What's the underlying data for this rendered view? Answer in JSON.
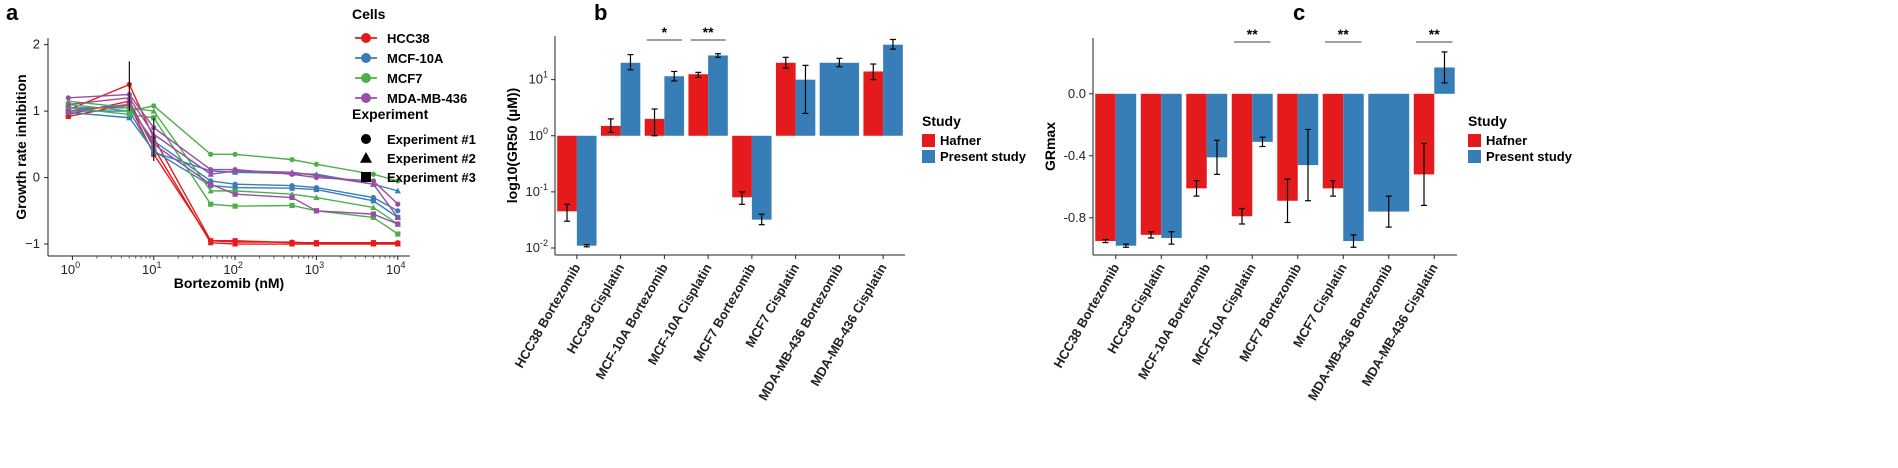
{
  "colors": {
    "HCC38": "#e41a1c",
    "MCF-10A": "#377eb8",
    "MCF7": "#4daf4a",
    "MDA-MB-436": "#984ea3",
    "Hafner": "#e41a1c",
    "Present study": "#377eb8"
  },
  "chart_data": [
    {
      "panel": "a",
      "type": "line",
      "xlabel": "Bortezomib (nM)",
      "ylabel": "Growth rate inhibition",
      "xscale": "log10",
      "xlim_log10": [
        -0.3,
        4.15
      ],
      "ylim": [
        -1.18,
        2.1
      ],
      "x_ticks": [
        {
          "value": 0,
          "base": "10",
          "exp": "0"
        },
        {
          "value": 1,
          "base": "10",
          "exp": "1"
        },
        {
          "value": 2,
          "base": "10",
          "exp": "2"
        },
        {
          "value": 3,
          "base": "10",
          "exp": "3"
        },
        {
          "value": 4,
          "base": "10",
          "exp": "4"
        }
      ],
      "y_ticks": [
        {
          "value": -1,
          "label": "−1"
        },
        {
          "value": 0,
          "label": "0"
        },
        {
          "value": 1,
          "label": "1"
        },
        {
          "value": 2,
          "label": "2"
        }
      ],
      "legend_cells_title": "Cells",
      "legend_cells": [
        "HCC38",
        "MCF-10A",
        "MCF7",
        "MDA-MB-436"
      ],
      "legend_experiment_title": "Experiment",
      "legend_experiment": [
        {
          "label": "Experiment #1",
          "shape": "circle"
        },
        {
          "label": "Experiment #2",
          "shape": "triangle"
        },
        {
          "label": "Experiment #3",
          "shape": "square"
        }
      ],
      "x_log10": [
        -0.05,
        0.7,
        1.0,
        1.7,
        2.0,
        2.7,
        3.0,
        3.7,
        4.0
      ],
      "series": [
        {
          "cell": "HCC38",
          "shape": "circle",
          "y": [
            1.02,
            1.4,
            0.6,
            -0.95,
            -0.97,
            -0.97,
            -0.99,
            -0.98,
            -0.98
          ]
        },
        {
          "cell": "HCC38",
          "shape": "triangle",
          "y": [
            0.95,
            1.15,
            0.45,
            -0.98,
            -1.0,
            -1.0,
            -1.0,
            -1.0,
            -1.0
          ]
        },
        {
          "cell": "HCC38",
          "shape": "square",
          "y": [
            0.92,
            1.1,
            0.35,
            -0.95,
            -0.95,
            -0.98,
            -0.98,
            -0.98,
            -0.99
          ]
        },
        {
          "cell": "MCF-10A",
          "shape": "circle",
          "y": [
            1.05,
            1.05,
            0.55,
            -0.05,
            -0.1,
            -0.12,
            -0.15,
            -0.3,
            -0.5
          ]
        },
        {
          "cell": "MCF-10A",
          "shape": "triangle",
          "y": [
            1.0,
            1.0,
            0.38,
            0.1,
            0.08,
            0.06,
            0.05,
            -0.1,
            -0.2
          ]
        },
        {
          "cell": "MCF-10A",
          "shape": "square",
          "y": [
            0.98,
            0.9,
            0.4,
            -0.12,
            -0.15,
            -0.16,
            -0.18,
            -0.35,
            -0.6
          ]
        },
        {
          "cell": "MCF7",
          "shape": "circle",
          "y": [
            1.1,
            1.0,
            1.08,
            0.35,
            0.35,
            0.27,
            0.2,
            0.05,
            -0.05
          ]
        },
        {
          "cell": "MCF7",
          "shape": "triangle",
          "y": [
            1.15,
            1.05,
            1.0,
            -0.2,
            -0.2,
            -0.25,
            -0.3,
            -0.45,
            -0.7
          ]
        },
        {
          "cell": "MCF7",
          "shape": "square",
          "y": [
            1.05,
            0.95,
            0.9,
            -0.4,
            -0.43,
            -0.42,
            -0.5,
            -0.6,
            -0.85
          ]
        },
        {
          "cell": "MDA-MB-436",
          "shape": "circle",
          "y": [
            1.2,
            1.25,
            0.75,
            0.12,
            0.12,
            0.05,
            0.0,
            -0.05,
            -0.4
          ]
        },
        {
          "cell": "MDA-MB-436",
          "shape": "triangle",
          "y": [
            1.1,
            1.2,
            0.65,
            0.05,
            0.1,
            0.08,
            0.03,
            -0.1,
            -0.6
          ]
        },
        {
          "cell": "MDA-MB-436",
          "shape": "square",
          "y": [
            1.0,
            1.1,
            0.5,
            -0.1,
            -0.25,
            -0.3,
            -0.5,
            -0.55,
            -0.7
          ]
        }
      ]
    },
    {
      "panel": "b",
      "type": "bar",
      "ylabel": "log10(GR50 (µM))",
      "yscale": "log10",
      "baseline": 1,
      "ylim": [
        0.0075,
        60
      ],
      "y_ticks": [
        {
          "value": 0.01,
          "base": "10",
          "exp": "-2"
        },
        {
          "value": 0.1,
          "base": "10",
          "exp": "-1"
        },
        {
          "value": 1,
          "base": "10",
          "exp": "0"
        },
        {
          "value": 10,
          "base": "10",
          "exp": "1"
        }
      ],
      "categories": [
        "HCC38 Bortezomib",
        "HCC38 Cisplatin",
        "MCF-10A Bortezomib",
        "MCF-10A Cisplatin",
        "MCF7 Bortezomib",
        "MCF7 Cisplatin",
        "MDA-MB-436 Bortezomib",
        "MDA-MB-436 Cisplatin"
      ],
      "legend_title": "Study",
      "legend": [
        "Hafner",
        "Present study"
      ],
      "series": [
        {
          "name": "Hafner",
          "values": [
            0.045,
            1.5,
            2.0,
            12.5,
            0.08,
            20.0,
            null,
            14.0
          ],
          "err_lo": [
            0.03,
            1.15,
            1.0,
            11.0,
            0.06,
            16.0,
            null,
            10.0
          ],
          "err_hi": [
            0.06,
            2.0,
            3.0,
            13.5,
            0.1,
            25.0,
            null,
            19.0
          ]
        },
        {
          "name": "Present study",
          "values": [
            0.011,
            20.0,
            11.5,
            27.0,
            0.032,
            10.0,
            20.0,
            42.0
          ],
          "err_lo": [
            0.0105,
            15.0,
            9.5,
            25.0,
            0.026,
            2.5,
            17.0,
            35.0
          ],
          "err_hi": [
            0.0115,
            28.0,
            14.0,
            29.0,
            0.04,
            18.0,
            24.0,
            52.0
          ]
        }
      ],
      "significance": [
        {
          "category_index": 2,
          "label": "*"
        },
        {
          "category_index": 3,
          "label": "**"
        }
      ]
    },
    {
      "panel": "c",
      "type": "bar",
      "ylabel": "GRmax",
      "baseline": 0,
      "ylim": [
        -1.04,
        0.36
      ],
      "y_ticks": [
        {
          "value": 0,
          "label": "0.0"
        },
        {
          "value": -0.4,
          "label": "-0.4"
        },
        {
          "value": -0.8,
          "label": "-0.8"
        }
      ],
      "categories": [
        "HCC38 Bortezomib",
        "HCC38 Cisplatin",
        "MCF-10A Bortezomib",
        "MCF-10A Cisplatin",
        "MCF7 Bortezomib",
        "MCF7 Cisplatin",
        "MDA-MB-436 Bortezomib",
        "MDA-MB-436 Cisplatin"
      ],
      "legend_title": "Study",
      "legend": [
        "Hafner",
        "Present study"
      ],
      "series": [
        {
          "name": "Hafner",
          "values": [
            -0.95,
            -0.91,
            -0.61,
            -0.79,
            -0.69,
            -0.61,
            null,
            -0.52
          ],
          "err_lo": [
            -0.96,
            -0.93,
            -0.66,
            -0.84,
            -0.83,
            -0.66,
            null,
            -0.72
          ],
          "err_hi": [
            -0.94,
            -0.89,
            -0.56,
            -0.74,
            -0.55,
            -0.56,
            null,
            -0.32
          ]
        },
        {
          "name": "Present study",
          "values": [
            -0.98,
            -0.93,
            -0.41,
            -0.31,
            -0.46,
            -0.95,
            -0.76,
            0.17
          ],
          "err_lo": [
            -0.99,
            -0.97,
            -0.52,
            -0.34,
            -0.69,
            -0.99,
            -0.86,
            0.07
          ],
          "err_hi": [
            -0.97,
            -0.89,
            -0.3,
            -0.28,
            -0.23,
            -0.91,
            -0.66,
            0.27
          ]
        }
      ],
      "significance": [
        {
          "category_index": 3,
          "label": "**"
        },
        {
          "category_index": 5,
          "label": "**"
        },
        {
          "category_index": 7,
          "label": "**"
        }
      ]
    }
  ],
  "panels": [
    "a",
    "b",
    "c"
  ]
}
